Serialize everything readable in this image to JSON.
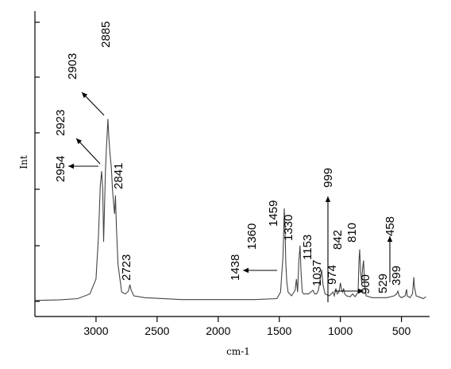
{
  "chart_data": {
    "type": "line",
    "title": "",
    "xlabel": "cm-1",
    "ylabel": "Int",
    "x_reversed": true,
    "xlim": [
      3500,
      270
    ],
    "ylim": [
      0,
      100
    ],
    "xticks": [
      3000,
      2500,
      2000,
      1500,
      1000,
      500
    ],
    "grid": false,
    "series": [
      {
        "x": [
          3500,
          3300,
          3150,
          3050,
          3000,
          2980,
          2965,
          2954,
          2945,
          2938,
          2923,
          2915,
          2903,
          2895,
          2885,
          2875,
          2865,
          2855,
          2848,
          2841,
          2833,
          2820,
          2790,
          2760,
          2735,
          2723,
          2712,
          2690,
          2600,
          2300,
          2000,
          1700,
          1520,
          1490,
          1470,
          1462,
          1459,
          1455,
          1446,
          1438,
          1428,
          1400,
          1370,
          1360,
          1350,
          1340,
          1330,
          1322,
          1312,
          1300,
          1260,
          1225,
          1210,
          1195,
          1180,
          1165,
          1153,
          1142,
          1125,
          1090,
          1060,
          1050,
          1037,
          1025,
          1012,
          999,
          990,
          982,
          974,
          965,
          950,
          920,
          900,
          880,
          855,
          848,
          842,
          835,
          825,
          818,
          810,
          802,
          790,
          740,
          680,
          620,
          560,
          540,
          529,
          518,
          500,
          470,
          460,
          458,
          453,
          430,
          410,
          403,
          399,
          394,
          380,
          340,
          320,
          300
        ],
        "y": [
          0.5,
          0.8,
          1.5,
          4,
          12,
          35,
          62,
          70,
          60,
          32,
          70,
          82,
          98,
          88,
          79,
          72,
          60,
          52,
          47,
          57,
          40,
          20,
          5,
          4,
          5.5,
          9,
          6,
          3,
          2,
          1,
          1,
          1,
          1.5,
          5,
          24,
          43,
          50,
          43,
          20,
          10,
          5,
          3,
          6,
          12,
          5,
          22,
          30,
          16,
          5,
          4,
          4,
          6,
          4,
          4,
          6,
          12,
          17,
          9,
          4,
          3,
          5,
          3,
          7,
          4,
          5,
          10,
          6,
          5,
          7,
          4,
          3,
          2.5,
          4,
          2.5,
          5,
          22,
          28,
          16,
          10,
          18,
          22,
          10,
          3,
          2,
          2,
          2,
          3,
          4,
          5.5,
          3,
          2,
          3,
          6,
          6.5,
          3,
          2,
          4,
          9,
          13,
          8,
          3,
          2,
          1.5,
          2.5
        ]
      }
    ],
    "annotations": [
      "2954",
      "2923",
      "2903",
      "2885",
      "2841",
      "2723",
      "1459",
      "1438",
      "1360",
      "1330",
      "1153",
      "1037",
      "999",
      "974",
      "900",
      "842",
      "810",
      "529",
      "458",
      "399"
    ]
  }
}
